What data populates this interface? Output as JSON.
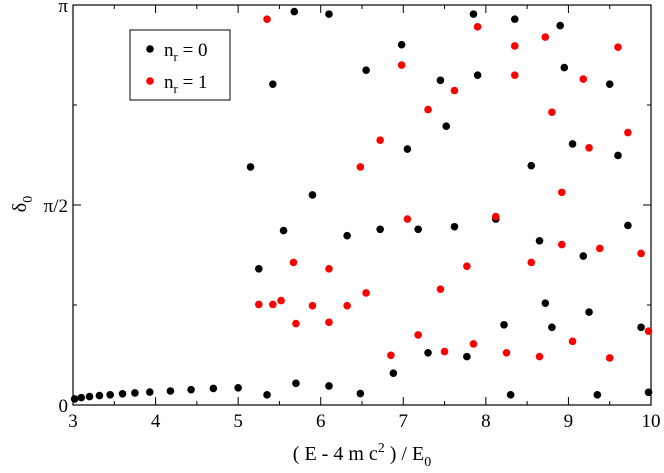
{
  "chart_data": {
    "type": "scatter",
    "title": "",
    "xlabel": {
      "main": "( E - 4 m c",
      "sup": "2",
      "mid": " ) / E",
      "sub": "0"
    },
    "ylabel": {
      "main": "δ",
      "sub": "0"
    },
    "xlim": [
      3,
      10
    ],
    "ylim": [
      0,
      3.14159
    ],
    "x_ticks": [
      3,
      4,
      5,
      6,
      7,
      8,
      9,
      10
    ],
    "x_tick_labels": [
      "3",
      "4",
      "5",
      "6",
      "7",
      "8",
      "9",
      "10"
    ],
    "y_ticks": [
      0,
      1.5708,
      3.14159
    ],
    "y_tick_labels": [
      "0",
      "π/2",
      "π"
    ],
    "grid": false,
    "legend_position": "top-left",
    "legend": [
      {
        "main": "n",
        "sub": "r",
        "rest": " = 0"
      },
      {
        "main": "n",
        "sub": "r",
        "rest": " = 1"
      }
    ],
    "series": [
      {
        "color": "#000000",
        "points": [
          [
            3.02,
            0.048
          ],
          [
            3.1,
            0.058
          ],
          [
            3.2,
            0.066
          ],
          [
            3.32,
            0.074
          ],
          [
            3.45,
            0.08
          ],
          [
            3.6,
            0.088
          ],
          [
            3.75,
            0.095
          ],
          [
            3.93,
            0.102
          ],
          [
            4.18,
            0.11
          ],
          [
            4.43,
            0.12
          ],
          [
            4.7,
            0.13
          ],
          [
            5.0,
            0.135
          ],
          [
            5.35,
            0.08
          ],
          [
            5.7,
            0.17
          ],
          [
            6.1,
            0.15
          ],
          [
            6.48,
            0.09
          ],
          [
            6.88,
            0.25
          ],
          [
            7.3,
            0.41
          ],
          [
            7.77,
            0.38
          ],
          [
            8.3,
            0.08
          ],
          [
            8.8,
            0.61
          ],
          [
            9.35,
            0.08
          ],
          [
            9.97,
            0.1
          ],
          [
            5.25,
            1.07
          ],
          [
            5.55,
            1.37
          ],
          [
            6.32,
            1.33
          ],
          [
            6.72,
            1.38
          ],
          [
            7.18,
            1.38
          ],
          [
            7.62,
            1.4
          ],
          [
            8.12,
            1.46
          ],
          [
            8.65,
            1.29
          ],
          [
            9.18,
            1.17
          ],
          [
            9.72,
            1.41
          ],
          [
            5.15,
            1.87
          ],
          [
            5.9,
            1.65
          ],
          [
            7.05,
            2.01
          ],
          [
            7.52,
            2.19
          ],
          [
            8.55,
            1.88
          ],
          [
            9.05,
            2.05
          ],
          [
            9.6,
            1.96
          ],
          [
            5.42,
            2.52
          ],
          [
            6.55,
            2.63
          ],
          [
            6.98,
            2.83
          ],
          [
            7.45,
            2.55
          ],
          [
            7.9,
            2.59
          ],
          [
            8.95,
            2.65
          ],
          [
            9.5,
            2.52
          ],
          [
            5.68,
            3.09
          ],
          [
            6.1,
            3.07
          ],
          [
            7.85,
            3.07
          ],
          [
            8.35,
            3.03
          ],
          [
            8.9,
            2.98
          ],
          [
            9.25,
            0.73
          ],
          [
            9.88,
            0.61
          ],
          [
            8.22,
            0.63
          ],
          [
            8.72,
            0.8
          ]
        ]
      },
      {
        "color": "#ff0000",
        "points": [
          [
            5.25,
            0.79
          ],
          [
            5.42,
            0.79
          ],
          [
            5.52,
            0.82
          ],
          [
            5.67,
            1.12
          ],
          [
            5.7,
            0.64
          ],
          [
            5.9,
            0.78
          ],
          [
            6.1,
            1.07
          ],
          [
            6.1,
            0.65
          ],
          [
            6.32,
            0.78
          ],
          [
            6.55,
            0.88
          ],
          [
            6.85,
            0.39
          ],
          [
            7.05,
            1.46
          ],
          [
            7.18,
            0.55
          ],
          [
            7.45,
            0.91
          ],
          [
            7.5,
            0.42
          ],
          [
            7.77,
            1.09
          ],
          [
            7.85,
            0.48
          ],
          [
            8.12,
            1.48
          ],
          [
            8.25,
            0.41
          ],
          [
            8.55,
            1.12
          ],
          [
            8.65,
            0.38
          ],
          [
            8.92,
            1.26
          ],
          [
            9.05,
            0.5
          ],
          [
            9.38,
            1.23
          ],
          [
            9.5,
            0.37
          ],
          [
            9.88,
            1.19
          ],
          [
            9.97,
            0.58
          ],
          [
            6.48,
            1.87
          ],
          [
            6.72,
            2.08
          ],
          [
            6.98,
            2.67
          ],
          [
            7.3,
            2.32
          ],
          [
            7.62,
            2.47
          ],
          [
            7.9,
            2.97
          ],
          [
            8.35,
            2.59
          ],
          [
            8.35,
            2.82
          ],
          [
            8.72,
            2.89
          ],
          [
            8.8,
            2.3
          ],
          [
            8.92,
            1.67
          ],
          [
            9.18,
            2.56
          ],
          [
            9.25,
            2.02
          ],
          [
            9.6,
            2.81
          ],
          [
            9.72,
            2.14
          ],
          [
            5.35,
            3.03
          ]
        ]
      }
    ]
  }
}
